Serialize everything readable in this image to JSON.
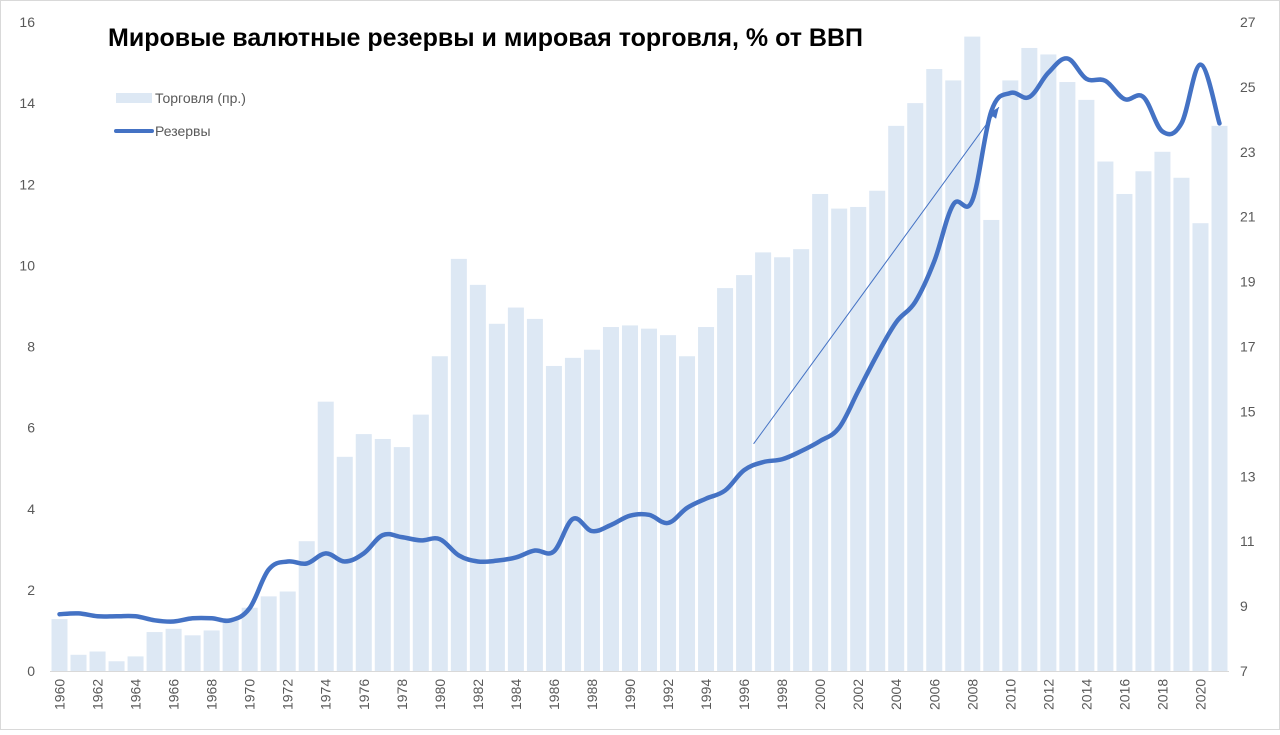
{
  "chart_data": {
    "type": "bar",
    "title": "Мировые валютные резервы и мировая торговля, % от ВВП",
    "categories": [
      "1960",
      "1961",
      "1962",
      "1963",
      "1964",
      "1965",
      "1966",
      "1967",
      "1968",
      "1969",
      "1970",
      "1971",
      "1972",
      "1973",
      "1974",
      "1975",
      "1976",
      "1977",
      "1978",
      "1979",
      "1980",
      "1981",
      "1982",
      "1983",
      "1984",
      "1985",
      "1986",
      "1987",
      "1988",
      "1989",
      "1990",
      "1991",
      "1992",
      "1993",
      "1994",
      "1995",
      "1996",
      "1997",
      "1998",
      "1999",
      "2000",
      "2001",
      "2002",
      "2003",
      "2004",
      "2005",
      "2006",
      "2007",
      "2008",
      "2009",
      "2010",
      "2011",
      "2012",
      "2013",
      "2014",
      "2015",
      "2016",
      "2017",
      "2018",
      "2019",
      "2020",
      "2021"
    ],
    "x_tick_labels": [
      "1960",
      "1962",
      "1964",
      "1966",
      "1968",
      "1970",
      "1972",
      "1974",
      "1976",
      "1978",
      "1980",
      "1982",
      "1984",
      "1986",
      "1988",
      "1990",
      "1992",
      "1994",
      "1996",
      "1998",
      "2000",
      "2002",
      "2004",
      "2006",
      "2008",
      "2010",
      "2012",
      "2014",
      "2016",
      "2018",
      "2020"
    ],
    "series": [
      {
        "name": "Торговля (пр.)",
        "type": "bar",
        "axis": "right",
        "color": "#dde8f4",
        "values": [
          8.6,
          7.5,
          7.6,
          7.3,
          7.45,
          8.2,
          8.3,
          8.1,
          8.25,
          8.6,
          8.95,
          9.3,
          9.45,
          11.0,
          15.3,
          13.6,
          14.3,
          14.15,
          13.9,
          14.9,
          16.7,
          19.7,
          18.9,
          17.7,
          18.2,
          17.85,
          16.4,
          16.65,
          16.9,
          17.6,
          17.65,
          17.55,
          17.35,
          16.7,
          17.6,
          18.8,
          19.2,
          19.9,
          19.75,
          20.0,
          21.7,
          21.25,
          21.3,
          21.8,
          23.8,
          24.5,
          25.55,
          25.2,
          26.55,
          20.9,
          25.2,
          26.2,
          26.0,
          25.15,
          24.6,
          22.7,
          21.7,
          22.4,
          23.0,
          22.2,
          20.8,
          23.8
        ]
      },
      {
        "name": "Резервы",
        "type": "line",
        "axis": "left",
        "color": "#4472c4",
        "values": [
          1.4,
          1.42,
          1.35,
          1.35,
          1.35,
          1.25,
          1.22,
          1.3,
          1.3,
          1.25,
          1.55,
          2.5,
          2.7,
          2.65,
          2.9,
          2.7,
          2.9,
          3.35,
          3.3,
          3.22,
          3.25,
          2.85,
          2.7,
          2.72,
          2.8,
          2.97,
          2.95,
          3.75,
          3.45,
          3.6,
          3.83,
          3.85,
          3.65,
          4.02,
          4.25,
          4.45,
          4.95,
          5.15,
          5.22,
          5.42,
          5.67,
          6.0,
          6.9,
          7.8,
          8.6,
          9.1,
          10.1,
          11.5,
          11.6,
          13.8,
          14.25,
          14.15,
          14.75,
          15.1,
          14.6,
          14.55,
          14.1,
          14.15,
          13.3,
          13.5,
          14.95,
          13.5
        ]
      }
    ],
    "y_left": {
      "min": 0,
      "max": 16,
      "ticks": [
        "0",
        "2",
        "4",
        "6",
        "8",
        "10",
        "12",
        "14",
        "16"
      ]
    },
    "y_right": {
      "min": 7,
      "max": 27,
      "ticks": [
        "7",
        "9",
        "11",
        "13",
        "15",
        "17",
        "19",
        "21",
        "23",
        "25",
        "27"
      ]
    },
    "annotation": {
      "type": "arrow",
      "from": {
        "x": 1996.5,
        "y": 5.6
      },
      "to": {
        "x": 2009.4,
        "y": 13.9
      },
      "color": "#4472c4"
    },
    "legend_position": "top-left",
    "grid": false
  }
}
